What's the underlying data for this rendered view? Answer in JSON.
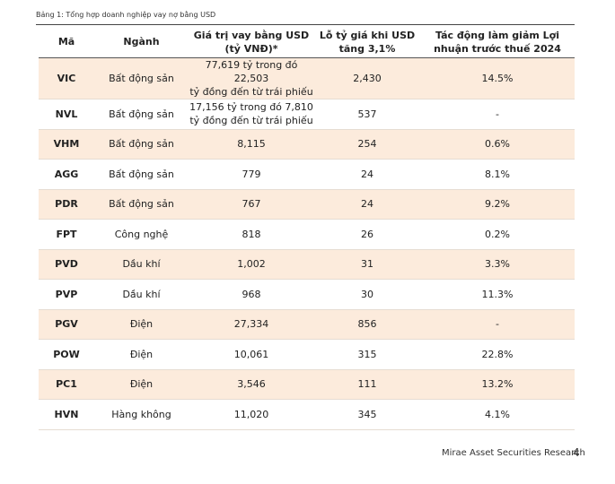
{
  "caption": "Bảng 1: Tổng hợp doanh nghiệp vay nợ bằng USD",
  "table": {
    "headers": [
      "Mã",
      "Ngành",
      "Giá trị vay bằng USD (tỷ VNĐ)*",
      "Lỗ tỷ giá khi USD tăng 3,1%",
      "Tác động làm giảm Lợi nhuận trước thuế 2024"
    ],
    "rows": [
      [
        "VIC",
        "Bất động sản",
        [
          "77,619 tỷ trong đó 22,503",
          "tỷ đồng đến từ trái phiếu"
        ],
        "2,430",
        "14.5%"
      ],
      [
        "NVL",
        "Bất động sản",
        [
          "17,156 tỷ trong đó 7,810",
          "tỷ đồng đến từ trái phiếu"
        ],
        "537",
        "-"
      ],
      [
        "VHM",
        "Bất động sản",
        "8,115",
        "254",
        "0.6%"
      ],
      [
        "AGG",
        "Bất động sản",
        "779",
        "24",
        "8.1%"
      ],
      [
        "PDR",
        "Bất động sản",
        "767",
        "24",
        "9.2%"
      ],
      [
        "FPT",
        "Công nghệ",
        "818",
        "26",
        "0.2%"
      ],
      [
        "PVD",
        "Dầu khí",
        "1,002",
        "31",
        "3.3%"
      ],
      [
        "PVP",
        "Dầu khí",
        "968",
        "30",
        "11.3%"
      ],
      [
        "PGV",
        "Điện",
        "27,334",
        "856",
        "-"
      ],
      [
        "POW",
        "Điện",
        "10,061",
        "315",
        "22.8%"
      ],
      [
        "PC1",
        "Điện",
        "3,546",
        "111",
        "13.2%"
      ],
      [
        "HVN",
        "Hàng không",
        "11,020",
        "345",
        "4.1%"
      ]
    ]
  },
  "footer": {
    "source": "Mirae Asset Securities Research",
    "page": "4"
  }
}
